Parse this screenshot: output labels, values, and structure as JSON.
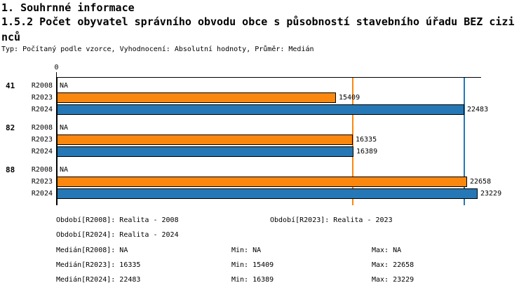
{
  "titles": {
    "section": "1. Souhrnné informace",
    "indicator": "1.5.2 Počet obyvatel správního obvodu obce s působností stavebního úřadu BEZ cizinců",
    "meta": "Typ: Počítaný podle vzorce, Vyhodnocení: Absolutní hodnoty, Průměr: Medián"
  },
  "colors": {
    "series_r2023": "#fc870e",
    "series_r2024": "#2578b5",
    "axis": "#000000",
    "background": "#ffffff"
  },
  "chart_data": {
    "type": "bar",
    "orientation": "horizontal",
    "title": "1.5.2 Počet obyvatel správního obvodu obce s působností stavebního úřadu BEZ cizinců",
    "categories": [
      "41",
      "82",
      "88"
    ],
    "series": [
      {
        "name": "R2008",
        "values": [
          null,
          null,
          null
        ],
        "labels": [
          "NA",
          "NA",
          "NA"
        ],
        "color": null
      },
      {
        "name": "R2023",
        "values": [
          15409,
          16335,
          22658
        ],
        "labels": [
          "15409",
          "16335",
          "22658"
        ],
        "color": "#fc870e"
      },
      {
        "name": "R2024",
        "values": [
          22483,
          16389,
          23229
        ],
        "labels": [
          "22483",
          "16389",
          "23229"
        ],
        "color": "#2578b5"
      }
    ],
    "xlim": [
      0,
      23430
    ],
    "x_axis_ticks": [
      "0"
    ],
    "grid": false,
    "legend_position": "bottom",
    "reference_lines": [
      {
        "name": "median-r2023",
        "value": 16335,
        "color": "#fc870e"
      },
      {
        "name": "median-r2024",
        "value": 22483,
        "color": "#2578b5"
      }
    ]
  },
  "legend": {
    "obdobi_r2008": "Období[R2008]: Realita - 2008",
    "obdobi_r2023": "Období[R2023]: Realita - 2023",
    "obdobi_r2024": "Období[R2024]: Realita - 2024",
    "median_r2008": "Medián[R2008]: NA",
    "median_r2023": "Medián[R2023]: 16335",
    "median_r2024": "Medián[R2024]: 22483",
    "min_r2008": "Min: NA",
    "min_r2023": "Min: 15409",
    "min_r2024": "Min: 16389",
    "max_r2008": "Max: NA",
    "max_r2023": "Max: 22658",
    "max_r2024": "Max: 23229"
  }
}
